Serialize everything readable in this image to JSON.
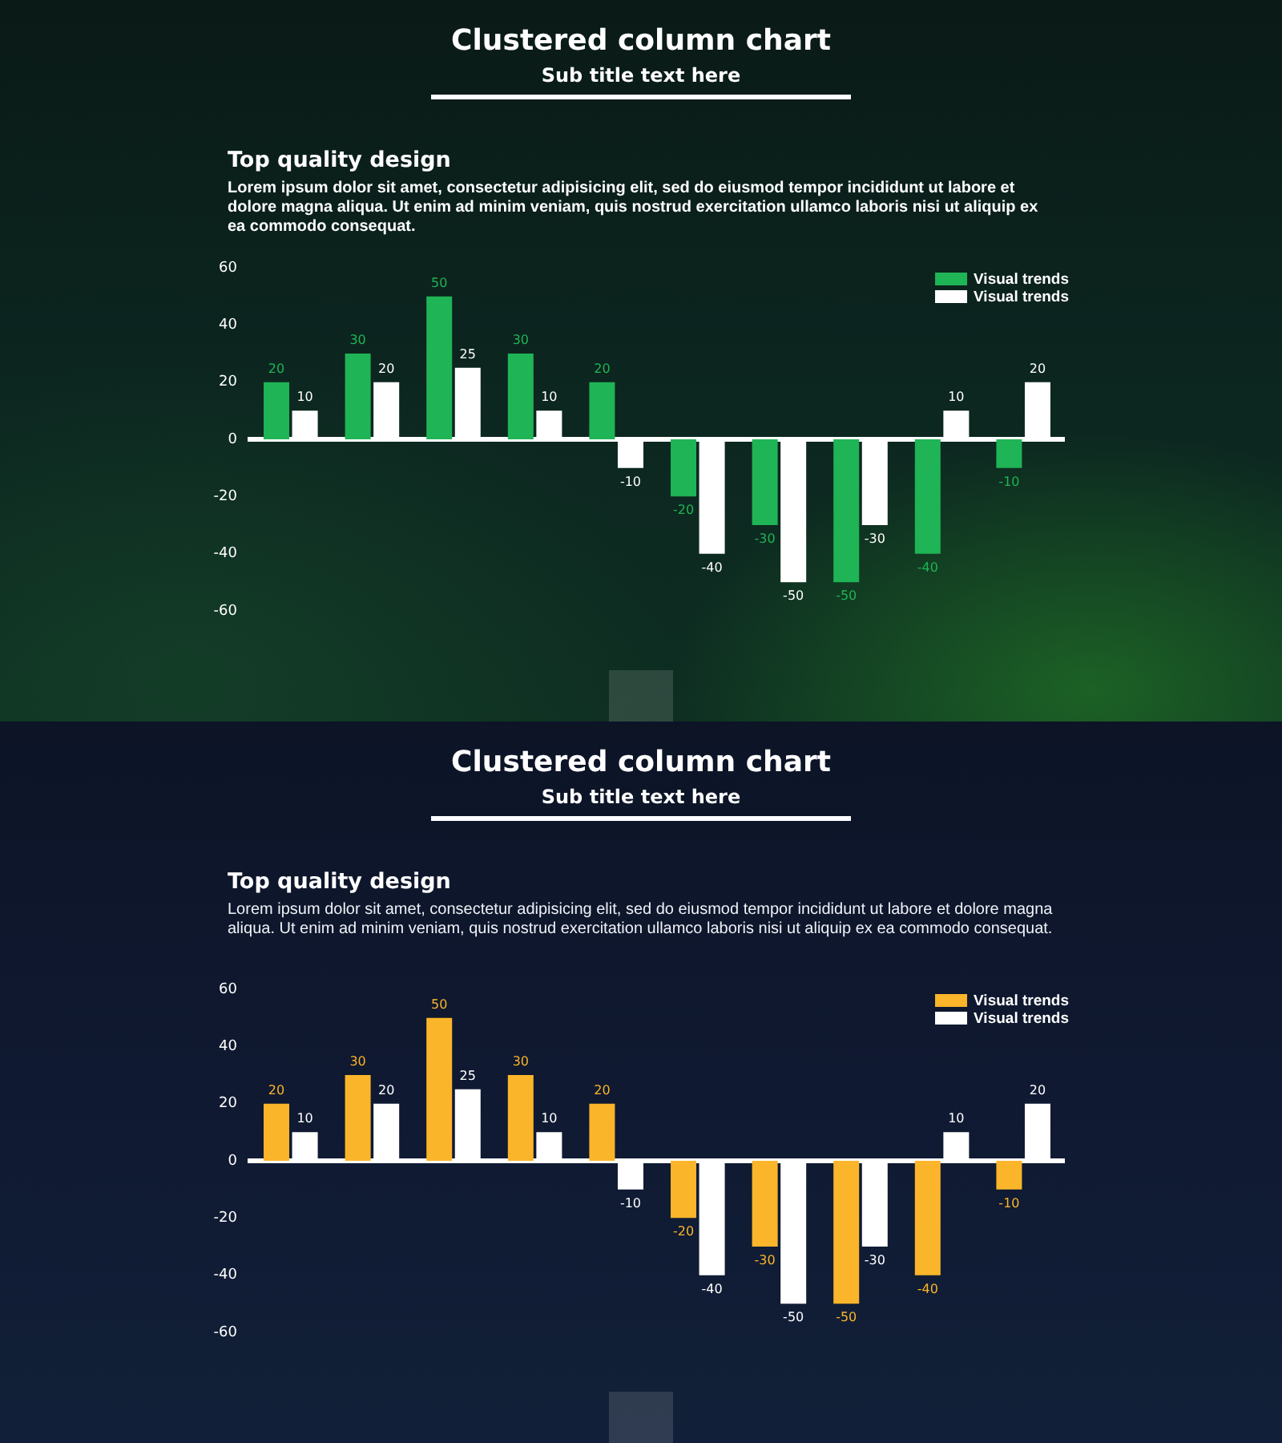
{
  "chart_data": [
    {
      "type": "bar",
      "title": "Clustered column chart",
      "subtitle": "Sub title text here",
      "annotations": [
        "Top quality design",
        "Lorem ipsum dolor sit amet, consectetur adipisicing elit, sed do eiusmod tempor incididunt ut labore et dolore magna aliqua. Ut enim ad minim veniam, quis nostrud exercitation ullamco laboris nisi ut aliquip ex ea commodo consequat."
      ],
      "categories": [
        null,
        null,
        null,
        null,
        null,
        null,
        null,
        null,
        null,
        null
      ],
      "series": [
        {
          "name": "Visual trends",
          "color": "#1fb455",
          "values": [
            20,
            30,
            50,
            30,
            20,
            -20,
            -30,
            -50,
            -40,
            -10
          ]
        },
        {
          "name": "Visual trends",
          "color": "#ffffff",
          "values": [
            10,
            20,
            25,
            10,
            -10,
            -40,
            -50,
            -30,
            10,
            20
          ]
        }
      ],
      "ylim": [
        -60,
        60
      ],
      "yticks": [
        -60,
        -40,
        -20,
        0,
        20,
        40,
        60
      ],
      "data_labels": true,
      "legend": "top right"
    },
    {
      "type": "bar",
      "title": "Clustered column chart",
      "subtitle": "Sub title text here",
      "annotations": [
        "Top quality design",
        "Lorem ipsum dolor sit amet, consectetur adipisicing elit, sed do eiusmod tempor incididunt ut labore et dolore magna aliqua. Ut enim ad minim veniam, quis nostrud exercitation ullamco laboris nisi ut aliquip ex ea commodo consequat."
      ],
      "categories": [
        null,
        null,
        null,
        null,
        null,
        null,
        null,
        null,
        null,
        null
      ],
      "series": [
        {
          "name": "Visual trends",
          "color": "#fbb52a",
          "values": [
            20,
            30,
            50,
            30,
            20,
            -20,
            -30,
            -50,
            -40,
            -10
          ]
        },
        {
          "name": "Visual trends",
          "color": "#ffffff",
          "values": [
            10,
            20,
            25,
            10,
            -10,
            -40,
            -50,
            -30,
            10,
            20
          ]
        }
      ],
      "ylim": [
        -60,
        60
      ],
      "yticks": [
        -60,
        -40,
        -20,
        0,
        20,
        40,
        60
      ],
      "data_labels": true,
      "legend": "top right"
    }
  ]
}
